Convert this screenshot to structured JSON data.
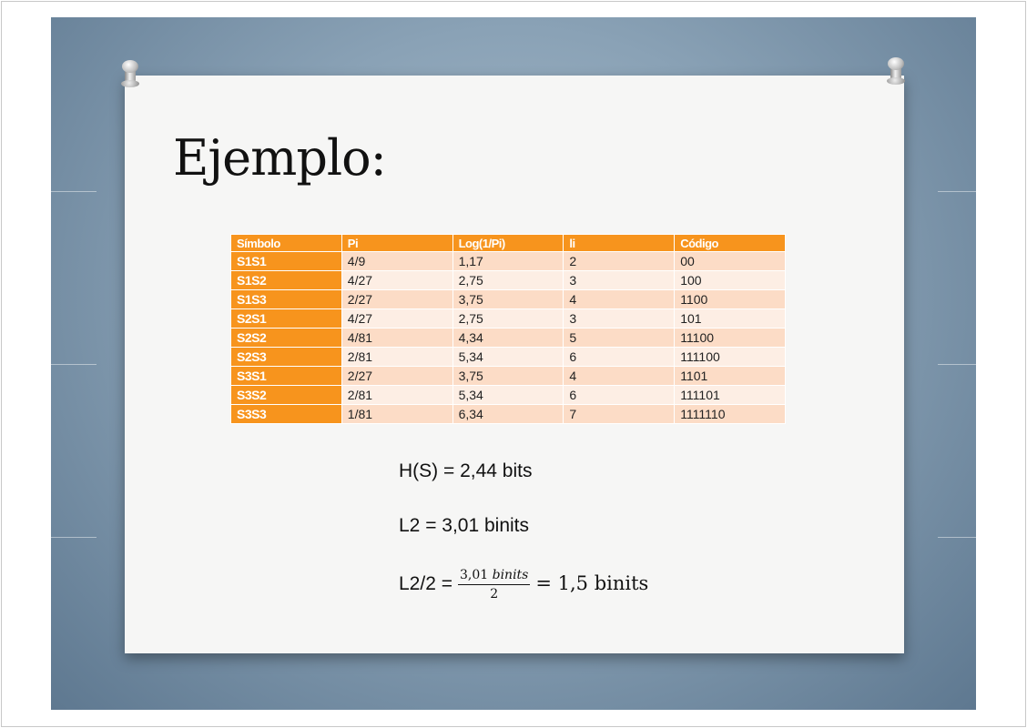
{
  "slide": {
    "title": "Ejemplo:",
    "table": {
      "headers": [
        "Símbolo",
        "Pi",
        "Log(1/Pi)",
        "li",
        "Código"
      ],
      "rows": [
        [
          "S1S1",
          "4/9",
          "1,17",
          "2",
          "00"
        ],
        [
          "S1S2",
          "4/27",
          "2,75",
          "3",
          "100"
        ],
        [
          "S1S3",
          "2/27",
          "3,75",
          "4",
          "1100"
        ],
        [
          "S2S1",
          "4/27",
          "2,75",
          "3",
          "101"
        ],
        [
          "S2S2",
          "4/81",
          "4,34",
          "5",
          "11100"
        ],
        [
          "S2S3",
          "2/81",
          "5,34",
          "6",
          "111100"
        ],
        [
          "S3S1",
          "2/27",
          "3,75",
          "4",
          "1101"
        ],
        [
          "S3S2",
          "2/81",
          "5,34",
          "6",
          "111101"
        ],
        [
          "S3S3",
          "1/81",
          "6,34",
          "7",
          "1111110"
        ]
      ]
    },
    "equations": {
      "entropy": "H(S) = 2,44 bits",
      "l2": "L2 = 3,01 binits",
      "l2_half_lhs": "L2/2 =",
      "l2_half_num_value": "3,01",
      "l2_half_num_unit": "binits",
      "l2_half_den": "2",
      "l2_half_rhs": "= 1,5 binits"
    }
  },
  "colors": {
    "header": "#f7941d",
    "row_odd": "#fcdcc6",
    "row_even": "#fdeee4"
  }
}
